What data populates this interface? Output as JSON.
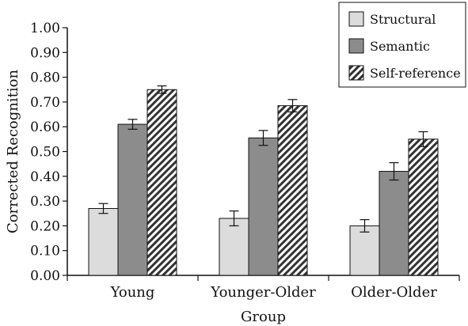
{
  "chart_data": {
    "type": "bar",
    "title": "",
    "xlabel": "Group",
    "ylabel": "Corrected Recognition",
    "ylim": [
      0,
      1.0
    ],
    "yticks": [
      "0.00",
      "0.10",
      "0.20",
      "0.30",
      "0.40",
      "0.50",
      "0.60",
      "0.70",
      "0.80",
      "0.90",
      "1.00"
    ],
    "grid": false,
    "legend_position": "top-right",
    "categories": [
      "Young",
      "Younger-Older",
      "Older-Older"
    ],
    "series": [
      {
        "name": "Structural",
        "values": [
          0.27,
          0.23,
          0.2
        ],
        "errors": [
          0.02,
          0.03,
          0.025
        ],
        "color": "#dcdcdc",
        "pattern": "solid"
      },
      {
        "name": "Semantic",
        "values": [
          0.61,
          0.555,
          0.42
        ],
        "errors": [
          0.02,
          0.03,
          0.035
        ],
        "color": "#8c8c8c",
        "pattern": "solid"
      },
      {
        "name": "Self-reference",
        "values": [
          0.75,
          0.685,
          0.55
        ],
        "errors": [
          0.015,
          0.025,
          0.03
        ],
        "color": "#333333",
        "pattern": "diagonal-hatch"
      }
    ]
  }
}
